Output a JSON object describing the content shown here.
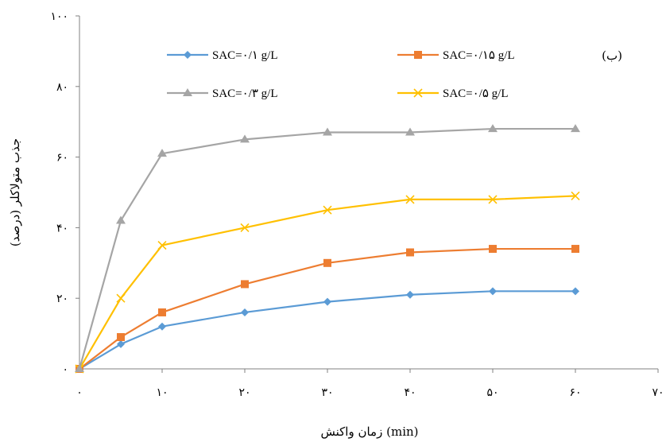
{
  "chart_data": {
    "type": "line",
    "panel_label": "(ب)",
    "xlabel": "زمان واکنش (min)",
    "ylabel": "جذب متولاکلر (درصد)",
    "xlim": [
      0,
      70
    ],
    "ylim": [
      0,
      100
    ],
    "x_ticks": [
      0,
      10,
      20,
      30,
      40,
      50,
      60,
      70
    ],
    "x_tick_labels": [
      "۰",
      "۱۰",
      "۲۰",
      "۳۰",
      "۴۰",
      "۵۰",
      "۶۰",
      "۷۰"
    ],
    "y_ticks": [
      0,
      20,
      40,
      60,
      80,
      100
    ],
    "y_tick_labels": [
      "۰",
      "۲۰",
      "۴۰",
      "۶۰",
      "۸۰",
      "۱۰۰"
    ],
    "grid": false,
    "legend_position": "top",
    "x": [
      0,
      5,
      10,
      20,
      30,
      40,
      50,
      60
    ],
    "series": [
      {
        "name": "SAC=۰/۱ g/L",
        "color": "#5b9bd5",
        "marker": "diamond",
        "values": [
          0,
          7,
          12,
          16,
          19,
          21,
          22,
          22
        ]
      },
      {
        "name": "SAC=۰/۱۵ g/L",
        "color": "#ed7d31",
        "marker": "square",
        "values": [
          0,
          9,
          16,
          24,
          30,
          33,
          34,
          34
        ]
      },
      {
        "name": "SAC=۰/۳ g/L",
        "color": "#a5a5a5",
        "marker": "triangle",
        "values": [
          0,
          42,
          61,
          65,
          67,
          67,
          68,
          68
        ]
      },
      {
        "name": "SAC=۰/۵ g/L",
        "color": "#ffc000",
        "marker": "x",
        "values": [
          0,
          20,
          35,
          40,
          45,
          48,
          48,
          49
        ]
      }
    ]
  }
}
